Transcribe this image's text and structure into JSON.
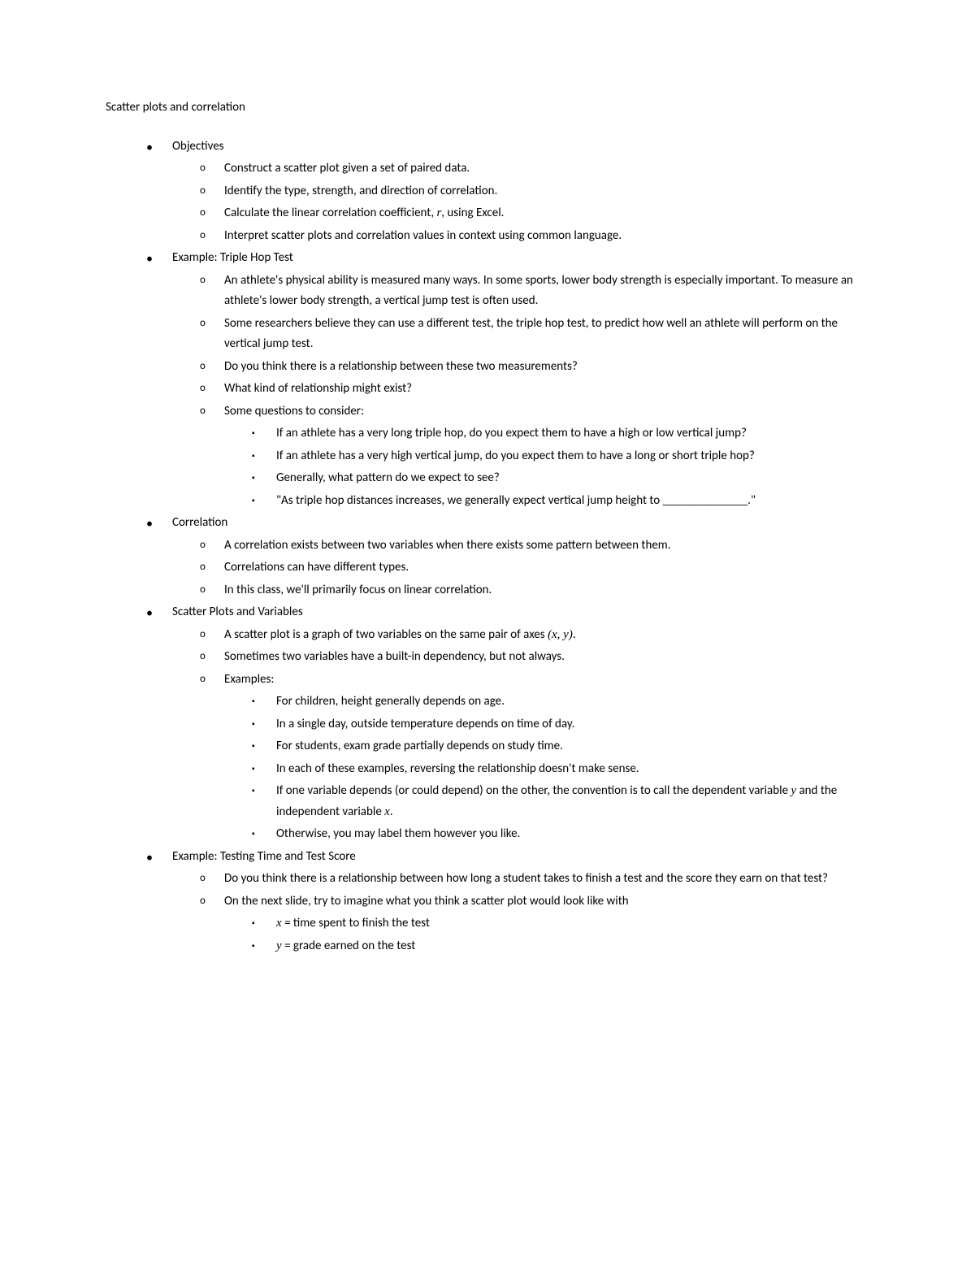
{
  "title": "Scatter plots and correlation",
  "fontsize_body": 15,
  "text_color": "#000000",
  "background_color": "#ffffff",
  "math_font": "Cambria Math",
  "sections": {
    "s0": {
      "heading": "Objectives",
      "items": [
        "Construct a scatter plot given a set of paired data.",
        "Identify the type, strength, and direction of correlation.",
        "Calculate the linear correlation coefficient, r, using Excel.",
        "Interpret scatter plots and correlation values in context using common language."
      ]
    },
    "s1": {
      "heading": "Example: Triple Hop Test",
      "items": [
        "An athlete's physical ability is measured many ways. In some sports, lower body strength is especially important. To measure an athlete's lower body strength, a vertical jump test is often used.",
        "Some researchers believe they can use a different test, the triple hop test, to predict how well an athlete will perform on the vertical jump test.",
        "Do you think there is a relationship between these two measurements?",
        "What kind of relationship might exist?",
        "Some questions to consider:"
      ],
      "sub": [
        "If an athlete has a very long triple hop, do you expect them to have a high or low vertical jump?",
        "If an athlete has a very high vertical jump, do you expect them to have a long or short triple hop?",
        "Generally, what pattern do we expect to see?",
        "\"As triple hop distances increases, we generally expect vertical jump height to ______________.\""
      ]
    },
    "s2": {
      "heading": "Correlation",
      "items": [
        "A correlation exists between two variables when there exists some pattern between them.",
        "Correlations can have different types.",
        "In this class, we'll primarily focus on linear correlation."
      ]
    },
    "s3": {
      "heading": "Scatter Plots and Variables",
      "item0_pre": "A scatter plot is a graph of two variables on the same pair of axes ",
      "item0_math": "(x, y)",
      "item0_post": ".",
      "item1": "Sometimes two variables have a built-in dependency, but not always.",
      "item2": "Examples:",
      "sub": {
        "e0": "For children, height generally depends on age.",
        "e1": "In a single day, outside temperature depends on time of day.",
        "e2": "For students, exam grade partially depends on study time.",
        "e3": "In each of these examples, reversing the relationship doesn't make sense.",
        "e4_pre": "If one variable depends (or could depend) on the other, the convention is to call the dependent variable ",
        "e4_y": "y",
        "e4_mid": " and the independent variable ",
        "e4_x": "x",
        "e4_post": ".",
        "e5": "Otherwise, you may label them however you like."
      }
    },
    "s4": {
      "heading": "Example: Testing Time and Test Score",
      "item0": "Do you think there is a relationship between how long a student takes to finish a test and the score they earn on that test?",
      "item1": "On the next slide, try to imagine what you think a scatter plot would look like with",
      "sub": {
        "x_var": "x",
        "x_eq": " = time spent to finish the test",
        "y_var": "y",
        "y_eq": " = grade earned on the test"
      }
    }
  }
}
